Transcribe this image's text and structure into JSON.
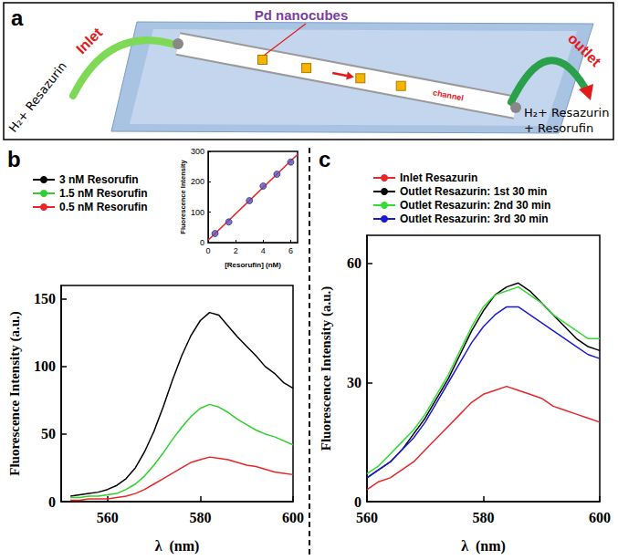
{
  "diagram": {
    "panel": "a",
    "particles_label": "Pd nanocubes",
    "inlet_label": "Inlet",
    "inlet_stream": "H₂+ Resazurin",
    "channel_label": "channel",
    "outlet_label": "outlet",
    "outlet_stream": "H₂+ Resazurin + Resorufin"
  },
  "chart_data": [
    {
      "panel": "b",
      "type": "line",
      "x_label": "λ  (nm)",
      "y_label": "Fluorescence Intensity (a.u.)",
      "x": [
        552,
        554,
        556,
        558,
        560,
        562,
        564,
        566,
        568,
        570,
        572,
        574,
        576,
        578,
        580,
        582,
        584,
        586,
        588,
        590,
        592,
        594,
        596,
        598,
        600
      ],
      "series": [
        {
          "name": "3 nM Resorufin",
          "color": "#000000",
          "values": [
            4,
            5,
            6,
            7,
            9,
            12,
            17,
            25,
            37,
            52,
            70,
            90,
            108,
            123,
            134,
            140,
            138,
            130,
            122,
            115,
            108,
            100,
            95,
            88,
            84
          ]
        },
        {
          "name": "1.5 nM Resorufin",
          "color": "#2fd12f",
          "values": [
            3,
            3,
            4,
            4,
            5,
            6,
            9,
            13,
            19,
            27,
            36,
            46,
            55,
            63,
            69,
            72,
            70,
            66,
            61,
            57,
            53,
            50,
            48,
            45,
            42
          ]
        },
        {
          "name": "0.5 nM Resorufin",
          "color": "#e8262a",
          "values": [
            1,
            1,
            2,
            2,
            2,
            3,
            4,
            6,
            9,
            13,
            17,
            21,
            25,
            29,
            31,
            33,
            32,
            31,
            29,
            27,
            26,
            24,
            22,
            21,
            20
          ]
        }
      ],
      "xlim": [
        550,
        600
      ],
      "xticks": [
        560,
        580,
        600
      ],
      "ylim": [
        0,
        160
      ],
      "yticks": [
        0,
        50,
        100,
        150
      ],
      "grid": false,
      "legend": "top-left",
      "inset": {
        "type": "scatter",
        "x_label": "[Resorufin] (nM)",
        "y_label": "Fluorescence Intensity",
        "series": [
          {
            "type": "scatter",
            "marker": "circle",
            "color": "#5b4fd0",
            "x": [
              0.5,
              1.5,
              3,
              4,
              5,
              6
            ],
            "values": [
              30,
              68,
              138,
              186,
              225,
              265
            ]
          },
          {
            "type": "line",
            "color": "#e8262a",
            "x": [
              0,
              6.5
            ],
            "values": [
              8,
              290
            ]
          }
        ],
        "xlim": [
          0,
          6.5
        ],
        "xticks": [
          0,
          2,
          4,
          6
        ],
        "ylim": [
          0,
          300
        ],
        "yticks": [
          0,
          100,
          200,
          300
        ],
        "grid": false
      }
    },
    {
      "panel": "c",
      "type": "line",
      "x_label": "λ  (nm)",
      "y_label": "Fluorescence Intensity (a.u.)",
      "x": [
        560,
        562,
        564,
        566,
        568,
        570,
        572,
        574,
        576,
        578,
        580,
        582,
        584,
        586,
        588,
        590,
        592,
        594,
        596,
        598,
        600
      ],
      "series": [
        {
          "name": "Inlet Resazurin",
          "color": "#e8262a",
          "values": [
            3,
            5,
            6,
            8,
            10,
            13,
            16,
            19,
            22,
            25,
            27,
            28,
            29,
            28,
            27,
            26,
            24,
            23,
            22,
            21,
            20
          ]
        },
        {
          "name": "Outlet Resazurin: 1st 30 min",
          "color": "#000000",
          "values": [
            6,
            8,
            10,
            13,
            17,
            21,
            26,
            31,
            37,
            43,
            48,
            52,
            54,
            55,
            53,
            50,
            47,
            44,
            41,
            39,
            38
          ]
        },
        {
          "name": "Outlet Resazurin: 2nd 30 min",
          "color": "#33dd33",
          "values": [
            7,
            9,
            12,
            15,
            18,
            22,
            27,
            32,
            38,
            44,
            49,
            52,
            53,
            54,
            52,
            50,
            47,
            45,
            43,
            41,
            41
          ]
        },
        {
          "name": "Outlet Resazurin: 3rd 30 min",
          "color": "#1a1ad6",
          "values": [
            6,
            8,
            10,
            13,
            16,
            20,
            25,
            30,
            35,
            40,
            44,
            47,
            49,
            49,
            47,
            45,
            43,
            41,
            39,
            37,
            36
          ]
        }
      ],
      "xlim": [
        560,
        600
      ],
      "xticks": [
        560,
        580,
        600
      ],
      "ylim": [
        0,
        67
      ],
      "yticks": [
        0,
        30,
        60
      ],
      "grid": false,
      "legend": "top-left"
    }
  ]
}
